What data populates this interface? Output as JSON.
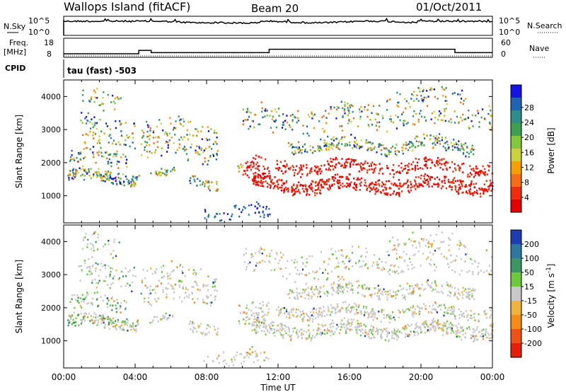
{
  "header": {
    "station": "Wallops Island (fitACF)",
    "beam": "Beam 20",
    "date": "01/Oct/2011"
  },
  "noise_panel": {
    "left_label": "N.Sky",
    "right_label": "N.Search",
    "left_ticks": [
      "10^5",
      "10^0"
    ],
    "right_ticks": [
      "10^5",
      "10^0"
    ]
  },
  "freq_panel": {
    "left_label_1": "Freq.",
    "left_label_2": "[MHz]",
    "left_ticks": [
      "18",
      "8"
    ],
    "right_label": "Nave",
    "right_ticks": [
      "60",
      "0"
    ],
    "freq_steps": [
      {
        "t": 0.0,
        "mhz": 10.5
      },
      {
        "t": 4.2,
        "mhz": 13.5
      },
      {
        "t": 4.9,
        "mhz": 11.5
      },
      {
        "t": 11.5,
        "mhz": 14.5
      },
      {
        "t": 21.9,
        "mhz": 11.5
      }
    ]
  },
  "cpid": {
    "label": "CPID",
    "value": "tau (fast) -503"
  },
  "chart_data": [
    {
      "type": "heatmap",
      "name": "Power",
      "ylabel": "Slant Range [km]",
      "xlabel": "",
      "y_ticks": [
        1000,
        2000,
        3000,
        4000
      ],
      "ylim": [
        180,
        4500
      ],
      "colorbar_label": "Power [dB]",
      "colorbar_ticks": [
        "4",
        "8",
        "12",
        "16",
        "20",
        "24",
        "28"
      ],
      "colorbar_colors": [
        "#1414e6",
        "#1e64b4",
        "#2d8c8c",
        "#3ca050",
        "#82c83c",
        "#c8d23c",
        "#f5a000",
        "#f56e14",
        "#f02d0a",
        "#e60000"
      ]
    },
    {
      "type": "heatmap",
      "name": "Velocity",
      "ylabel": "Slant Range [km]",
      "xlabel": "Time UT",
      "y_ticks": [
        1000,
        2000,
        3000,
        4000
      ],
      "ylim": [
        180,
        4500
      ],
      "x_ticks": [
        "00:00",
        "04:00",
        "08:00",
        "12:00",
        "16:00",
        "20:00",
        "00:00"
      ],
      "xlim": [
        0,
        24
      ],
      "colorbar_label": "Velocity [m s^-1]",
      "colorbar_ticks": [
        "200",
        "100",
        "50",
        "15",
        "-15",
        "-50",
        "-100",
        "-200"
      ],
      "colorbar_colors": [
        "#1e3cb4",
        "#2d78a0",
        "#3c9664",
        "#6ec83c",
        "#c8c8c8",
        "#f0b43c",
        "#f58c14",
        "#f05014",
        "#e61e0a"
      ]
    }
  ]
}
